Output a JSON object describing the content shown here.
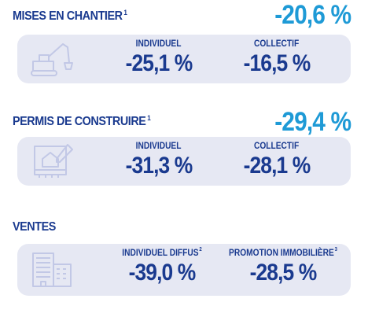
{
  "sections": [
    {
      "title": "MISES EN CHANTIER",
      "note": "1",
      "total": "-20,6 %",
      "icon": "excavator-icon",
      "columns": [
        {
          "label": "INDIVIDUEL",
          "note": "",
          "value": "-25,1 %"
        },
        {
          "label": "COLLECTIF",
          "note": "",
          "value": "-16,5 %"
        }
      ]
    },
    {
      "title": "PERMIS DE CONSTRUIRE",
      "note": "1",
      "total": "-29,4 %",
      "icon": "blueprint-icon",
      "columns": [
        {
          "label": "INDIVIDUEL",
          "note": "",
          "value": "-31,3 %"
        },
        {
          "label": "COLLECTIF",
          "note": "",
          "value": "-28,1 %"
        }
      ]
    },
    {
      "title": "VENTES",
      "note": "",
      "total": "",
      "icon": "buildings-icon",
      "columns": [
        {
          "label": "INDIVIDUEL DIFFUS",
          "note": "2",
          "value": "-39,0 %"
        },
        {
          "label": "PROMOTION IMMOBILIÈRE",
          "note": "3",
          "value": "-28,5 %"
        }
      ]
    }
  ],
  "colors": {
    "accent": "#1e9ad6",
    "primary": "#1a3a8f",
    "panel": "#e6e8f3"
  }
}
